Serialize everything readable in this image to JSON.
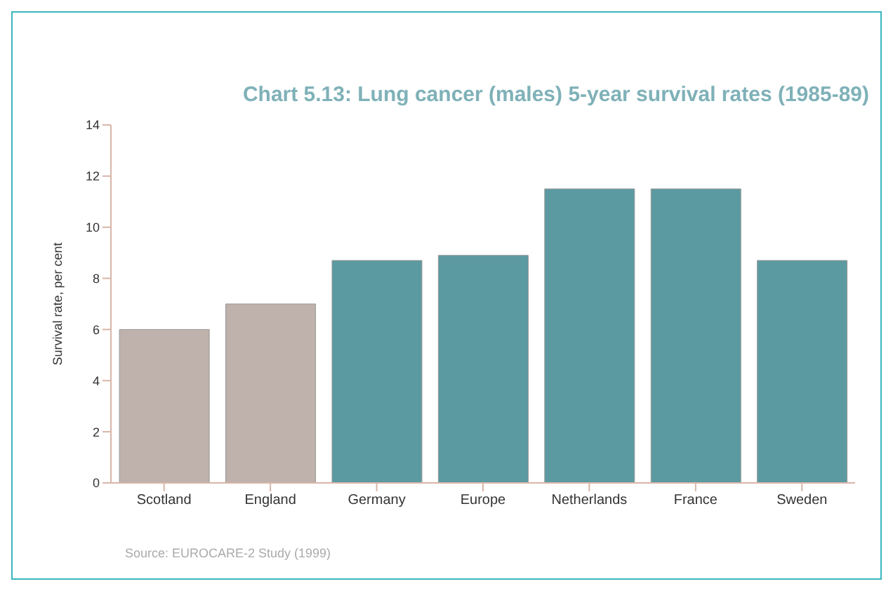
{
  "chart_data": {
    "type": "bar",
    "title": "Chart 5.13: Lung cancer (males) 5-year survival rates (1985-89)",
    "ylabel": "Survival rate, per cent",
    "categories": [
      "Scotland",
      "England",
      "Germany",
      "Europe",
      "Netherlands",
      "France",
      "Sweden"
    ],
    "values": [
      6.0,
      7.0,
      8.7,
      8.9,
      11.5,
      11.5,
      8.7
    ],
    "colors": [
      "#bfb1ab",
      "#bfb1ab",
      "#5b9aa0",
      "#5b9aa0",
      "#5b9aa0",
      "#5b9aa0",
      "#5b9aa0"
    ],
    "ylim": [
      0,
      14
    ],
    "yticks": [
      0,
      2,
      4,
      6,
      8,
      10,
      12,
      14
    ],
    "grid": false,
    "annotations": [
      "Source: EUROCARE-2 Study (1999)"
    ]
  }
}
